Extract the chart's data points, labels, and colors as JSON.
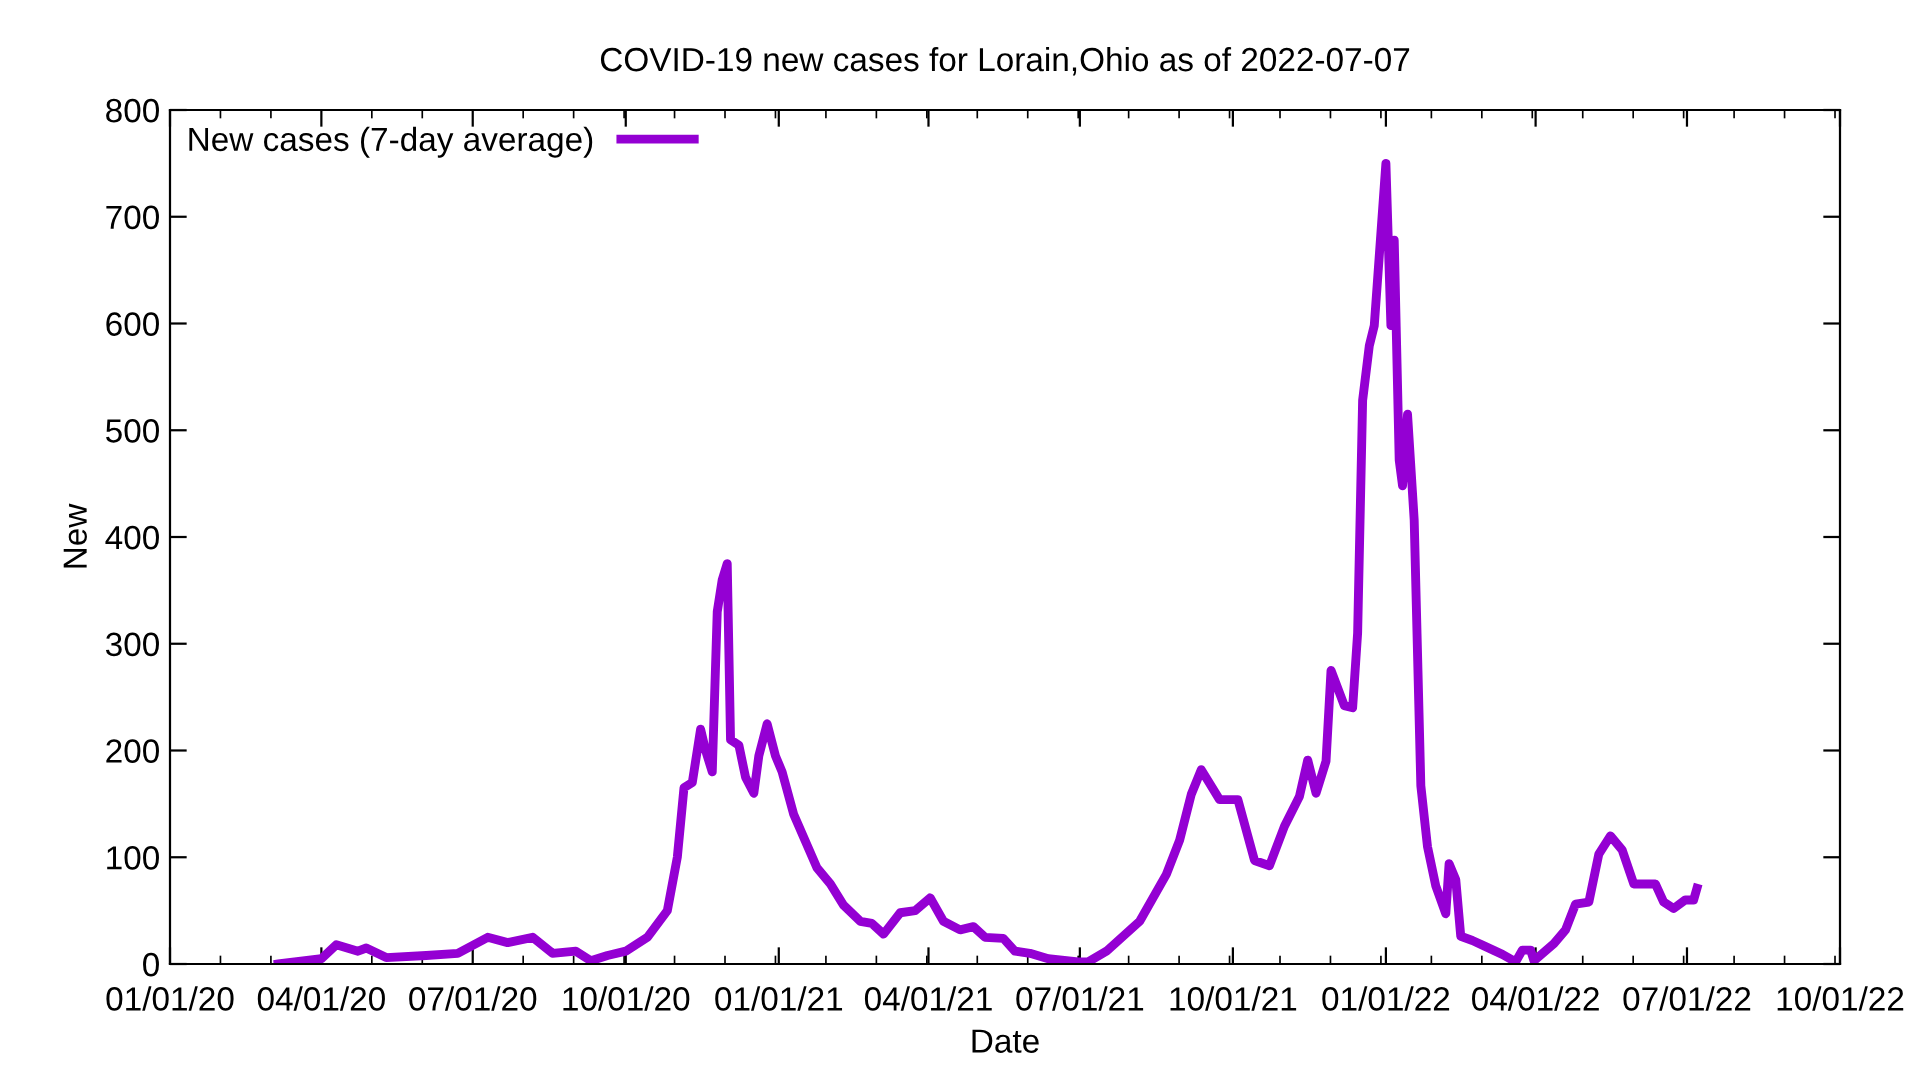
{
  "chart_data": {
    "type": "line",
    "title": "COVID-19 new cases for Lorain,Ohio as of 2022-07-07",
    "xlabel": "Date",
    "ylabel": "New",
    "x": [
      "2020-03-06",
      "2020-04-01",
      "2020-04-10",
      "2020-04-23",
      "2020-04-28",
      "2020-05-10",
      "2020-06-03",
      "2020-06-22",
      "2020-07-10",
      "2020-07-22",
      "2020-08-06",
      "2020-08-18",
      "2020-09-01",
      "2020-09-10",
      "2020-09-20",
      "2020-10-01",
      "2020-10-14",
      "2020-10-26",
      "2020-11-01",
      "2020-11-05",
      "2020-11-10",
      "2020-11-15",
      "2020-11-18",
      "2020-11-22",
      "2020-11-25",
      "2020-11-28",
      "2020-12-01",
      "2020-12-03",
      "2020-12-08",
      "2020-12-12",
      "2020-12-17",
      "2020-12-20",
      "2020-12-25",
      "2020-12-30",
      "2021-01-03",
      "2021-01-10",
      "2021-01-17",
      "2021-01-24",
      "2021-02-01",
      "2021-02-09",
      "2021-02-19",
      "2021-02-26",
      "2021-03-05",
      "2021-03-15",
      "2021-03-24",
      "2021-04-02",
      "2021-04-10",
      "2021-04-20",
      "2021-04-28",
      "2021-05-05",
      "2021-05-16",
      "2021-05-23",
      "2021-06-01",
      "2021-06-12",
      "2021-06-30",
      "2021-07-06",
      "2021-07-17",
      "2021-08-06",
      "2021-08-22",
      "2021-08-30",
      "2021-09-06",
      "2021-09-12",
      "2021-09-23",
      "2021-10-04",
      "2021-10-14",
      "2021-10-23",
      "2021-11-01",
      "2021-11-10",
      "2021-11-15",
      "2021-11-20",
      "2021-11-26",
      "2021-11-29",
      "2021-12-07",
      "2021-12-12",
      "2021-12-15",
      "2021-12-18",
      "2021-12-22",
      "2021-12-25",
      "2022-01-01",
      "2022-01-04",
      "2022-01-06",
      "2022-01-09",
      "2022-01-11",
      "2022-01-14",
      "2022-01-18",
      "2022-01-22",
      "2022-01-26",
      "2022-01-31",
      "2022-02-06",
      "2022-02-08",
      "2022-02-12",
      "2022-02-15",
      "2022-02-22",
      "2022-03-01",
      "2022-03-12",
      "2022-03-20",
      "2022-03-24",
      "2022-03-29",
      "2022-03-31",
      "2022-04-12",
      "2022-04-19",
      "2022-04-25",
      "2022-05-03",
      "2022-05-09",
      "2022-05-16",
      "2022-05-23",
      "2022-05-30",
      "2022-06-12",
      "2022-06-17",
      "2022-06-23",
      "2022-06-30",
      "2022-07-05",
      "2022-07-07"
    ],
    "series": [
      {
        "name": "New cases (7-day average)",
        "color": "#9400d3",
        "values": [
          0,
          5,
          18,
          12,
          15,
          6,
          8,
          10,
          25,
          20,
          25,
          10,
          12,
          3,
          8,
          12,
          25,
          50,
          100,
          165,
          170,
          220,
          200,
          180,
          330,
          360,
          375,
          210,
          205,
          175,
          160,
          195,
          225,
          195,
          180,
          140,
          115,
          90,
          75,
          55,
          40,
          38,
          28,
          48,
          50,
          62,
          40,
          32,
          35,
          25,
          24,
          12,
          10,
          5,
          2,
          2,
          12,
          40,
          84,
          116,
          159,
          182,
          154,
          154,
          97,
          92,
          129,
          157,
          191,
          160,
          190,
          275,
          242,
          240,
          310,
          528,
          579,
          598,
          750,
          598,
          678,
          472,
          448,
          515,
          416,
          167,
          110,
          73,
          47,
          94,
          79,
          26,
          22,
          17,
          9,
          2,
          13,
          13,
          3,
          19,
          32,
          56,
          58,
          103,
          120,
          107,
          75,
          75,
          58,
          52,
          60,
          60,
          71
        ]
      }
    ],
    "xlim": [
      "2020-01-01",
      "2022-10-01"
    ],
    "xticks": [
      {
        "value": "2020-01-01",
        "label": "01/01/20"
      },
      {
        "value": "2020-04-01",
        "label": "04/01/20"
      },
      {
        "value": "2020-07-01",
        "label": "07/01/20"
      },
      {
        "value": "2020-10-01",
        "label": "10/01/20"
      },
      {
        "value": "2021-01-01",
        "label": "01/01/21"
      },
      {
        "value": "2021-04-01",
        "label": "04/01/21"
      },
      {
        "value": "2021-07-01",
        "label": "07/01/21"
      },
      {
        "value": "2021-10-01",
        "label": "10/01/21"
      },
      {
        "value": "2022-01-01",
        "label": "01/01/22"
      },
      {
        "value": "2022-04-01",
        "label": "04/01/22"
      },
      {
        "value": "2022-07-01",
        "label": "07/01/22"
      },
      {
        "value": "2022-10-01",
        "label": "10/01/22"
      }
    ],
    "ylim": [
      0,
      800
    ],
    "yticks": [
      0,
      100,
      200,
      300,
      400,
      500,
      600,
      700,
      800
    ],
    "grid": false,
    "legend": "top left",
    "marker": "none",
    "line_style": "solid"
  }
}
